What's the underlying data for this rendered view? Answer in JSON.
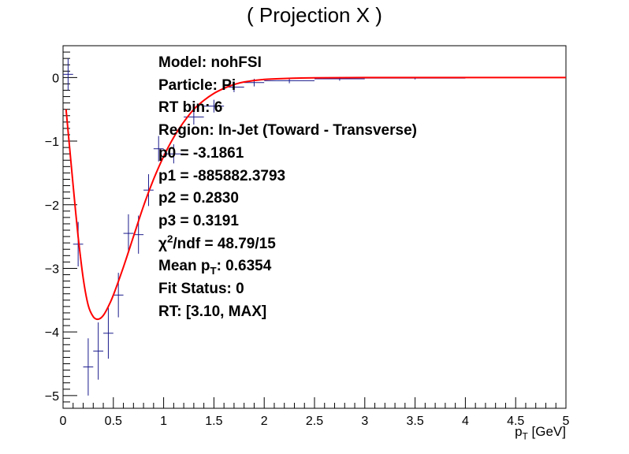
{
  "chart_data": {
    "type": "scatter",
    "title": "( Projection X )",
    "xlabel": "p_T [GeV]",
    "xlabel_main": "p",
    "xlabel_sub": "T",
    "xlabel_unit": "[GeV]",
    "ylabel": "",
    "xlim": [
      0,
      5
    ],
    "ylim": [
      -5.2,
      0.5
    ],
    "xticks": [
      0,
      0.5,
      1,
      1.5,
      2,
      2.5,
      3,
      3.5,
      4,
      4.5,
      5
    ],
    "xtick_labels": [
      "0",
      "0.5",
      "1",
      "1.5",
      "2",
      "2.5",
      "3",
      "3.5",
      "4",
      "4.5",
      "5"
    ],
    "yticks": [
      0,
      -1,
      -2,
      -3,
      -4,
      -5
    ],
    "ytick_labels": [
      "0",
      "−1",
      "−2",
      "−3",
      "−4",
      "−5"
    ],
    "grid": false,
    "series": [
      {
        "kind": "data_points",
        "color": "#1a1a8c",
        "points": [
          {
            "x": 0.05,
            "xerr": 0.05,
            "y": 0.05,
            "yerr": 0.25
          },
          {
            "x": 0.15,
            "xerr": 0.05,
            "y": -2.62,
            "yerr": 0.35
          },
          {
            "x": 0.25,
            "xerr": 0.05,
            "y": -4.55,
            "yerr": 0.45
          },
          {
            "x": 0.35,
            "xerr": 0.05,
            "y": -4.3,
            "yerr": 0.45
          },
          {
            "x": 0.45,
            "xerr": 0.05,
            "y": -4.02,
            "yerr": 0.4
          },
          {
            "x": 0.55,
            "xerr": 0.05,
            "y": -3.42,
            "yerr": 0.35
          },
          {
            "x": 0.65,
            "xerr": 0.05,
            "y": -2.45,
            "yerr": 0.3
          },
          {
            "x": 0.75,
            "xerr": 0.05,
            "y": -2.47,
            "yerr": 0.3
          },
          {
            "x": 0.85,
            "xerr": 0.05,
            "y": -1.77,
            "yerr": 0.25
          },
          {
            "x": 0.95,
            "xerr": 0.05,
            "y": -1.12,
            "yerr": 0.2
          },
          {
            "x": 1.1,
            "xerr": 0.1,
            "y": -1.2,
            "yerr": 0.15
          },
          {
            "x": 1.3,
            "xerr": 0.1,
            "y": -0.62,
            "yerr": 0.12
          },
          {
            "x": 1.5,
            "xerr": 0.1,
            "y": -0.45,
            "yerr": 0.1
          },
          {
            "x": 1.7,
            "xerr": 0.1,
            "y": -0.15,
            "yerr": 0.08
          },
          {
            "x": 1.9,
            "xerr": 0.1,
            "y": -0.08,
            "yerr": 0.06
          },
          {
            "x": 2.25,
            "xerr": 0.25,
            "y": -0.05,
            "yerr": 0.04
          },
          {
            "x": 2.75,
            "xerr": 0.25,
            "y": -0.02,
            "yerr": 0.03
          },
          {
            "x": 3.5,
            "xerr": 0.5,
            "y": -0.01,
            "yerr": 0.02
          }
        ]
      },
      {
        "kind": "fit_curve",
        "color": "#ff0000",
        "x": [
          0.03,
          0.06,
          0.1,
          0.15,
          0.2,
          0.25,
          0.3,
          0.35,
          0.4,
          0.45,
          0.5,
          0.6,
          0.7,
          0.8,
          0.9,
          1.0,
          1.1,
          1.2,
          1.3,
          1.4,
          1.5,
          1.6,
          1.7,
          1.8,
          2.0,
          2.2,
          2.5,
          3.0,
          3.5,
          4.0,
          4.5,
          5.0
        ],
        "y": [
          -0.5,
          -1.02,
          -1.7,
          -2.5,
          -3.15,
          -3.58,
          -3.76,
          -3.8,
          -3.74,
          -3.6,
          -3.42,
          -2.98,
          -2.5,
          -2.02,
          -1.6,
          -1.24,
          -0.94,
          -0.7,
          -0.5,
          -0.36,
          -0.25,
          -0.17,
          -0.11,
          -0.07,
          -0.03,
          -0.015,
          -0.005,
          -0.001,
          0.0,
          0.0,
          0.0,
          0.0
        ]
      }
    ]
  },
  "stats_box": [
    {
      "text": "Model: nohFSI"
    },
    {
      "text": "Particle: Pi"
    },
    {
      "text": "RT bin: 6"
    },
    {
      "text": "Region: In-Jet (Toward - Transverse)"
    },
    {
      "text": "p0 = -3.1861"
    },
    {
      "text": "p1 = -885882.3793"
    },
    {
      "text": "p2 = 0.2830"
    },
    {
      "text": "p3 = 0.3191"
    },
    {
      "pre": "χ",
      "sup": "2",
      "post": "/ndf = 48.79/15"
    },
    {
      "pre": "Mean p",
      "sub": "T",
      "post": ": 0.6354"
    },
    {
      "text": "Fit Status: 0"
    },
    {
      "text": "RT: [3.10, MAX]"
    }
  ]
}
